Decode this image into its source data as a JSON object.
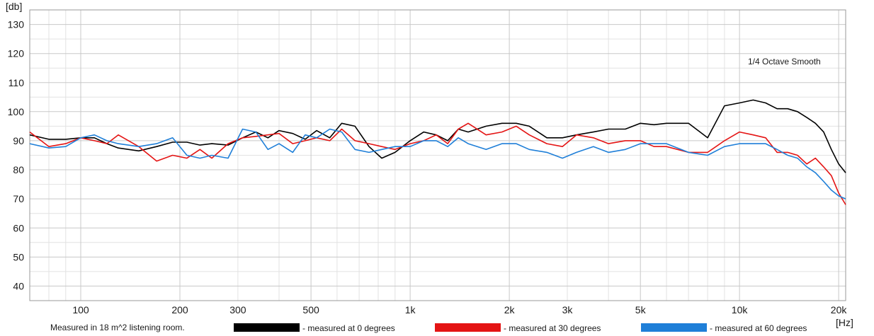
{
  "chart_data": {
    "type": "line",
    "title": "",
    "xlabel": "[Hz]",
    "ylabel": "[db]",
    "xscale": "log",
    "xlim": [
      70,
      21000
    ],
    "ylim": [
      35,
      135
    ],
    "grid": true,
    "annotation": "1/4 Octave Smooth",
    "footnote": "Measured in 18 m^2  listening room.",
    "x_ticks": [
      {
        "value": 100,
        "label": "100"
      },
      {
        "value": 200,
        "label": "200"
      },
      {
        "value": 300,
        "label": "300"
      },
      {
        "value": 500,
        "label": "500"
      },
      {
        "value": 1000,
        "label": "1k"
      },
      {
        "value": 2000,
        "label": "2k"
      },
      {
        "value": 3000,
        "label": "3k"
      },
      {
        "value": 5000,
        "label": "5k"
      },
      {
        "value": 10000,
        "label": "10k"
      },
      {
        "value": 20000,
        "label": "20k"
      }
    ],
    "y_ticks": [
      130,
      120,
      110,
      100,
      90,
      80,
      70,
      60,
      50,
      40
    ],
    "x": [
      70,
      80,
      90,
      100,
      110,
      120,
      130,
      150,
      170,
      190,
      210,
      230,
      250,
      280,
      310,
      340,
      370,
      400,
      440,
      480,
      520,
      570,
      620,
      680,
      750,
      820,
      900,
      1000,
      1100,
      1200,
      1300,
      1400,
      1500,
      1700,
      1900,
      2100,
      2300,
      2600,
      2900,
      3200,
      3600,
      4000,
      4500,
      5000,
      5500,
      6000,
      7000,
      8000,
      9000,
      10000,
      11000,
      12000,
      13000,
      14000,
      15000,
      16000,
      17000,
      18000,
      19000,
      20000,
      21000
    ],
    "series": [
      {
        "legend": "- measured at 0 degrees",
        "color": "#000000",
        "values": [
          92,
          90.5,
          90.5,
          91,
          91,
          89,
          87.5,
          86.5,
          88,
          89.5,
          89.5,
          88.5,
          89,
          88.5,
          91,
          93,
          91,
          93.5,
          92.5,
          90.5,
          93.5,
          91,
          96,
          95,
          88,
          84,
          86,
          90,
          93,
          92,
          90,
          94,
          93,
          95,
          96,
          96,
          95,
          91,
          91,
          92,
          93,
          94,
          94,
          96,
          95.5,
          96,
          96,
          91,
          102,
          103,
          104,
          103,
          101,
          101,
          100,
          98,
          96,
          93,
          87,
          82,
          79
        ]
      },
      {
        "legend": "- measured at 30 degrees",
        "color": "#e41414",
        "values": [
          93,
          88,
          89,
          91,
          90,
          89,
          92,
          88,
          83,
          85,
          84,
          87,
          84,
          89,
          91,
          91.5,
          92,
          92.5,
          89,
          90,
          91,
          90,
          94,
          90,
          89,
          88,
          87,
          89,
          90,
          92,
          89,
          94,
          96,
          92,
          93,
          95,
          92,
          89,
          88,
          92,
          91,
          89,
          90,
          90,
          88,
          88,
          86,
          86,
          90,
          93,
          92,
          91,
          86,
          86,
          85,
          82,
          84,
          81,
          78,
          72,
          68
        ]
      },
      {
        "legend": "- measured at 60 degrees",
        "color": "#1f7fd8",
        "values": [
          89,
          87.5,
          88,
          91,
          92,
          90,
          89,
          88,
          89,
          91,
          85,
          84,
          85,
          84,
          94,
          93,
          87,
          89,
          86,
          92,
          91,
          94,
          93,
          87,
          86,
          87,
          88,
          88,
          90,
          90,
          88,
          91,
          89,
          87,
          89,
          89,
          87,
          86,
          84,
          86,
          88,
          86,
          87,
          89,
          89,
          89,
          86,
          85,
          88,
          89,
          89,
          89,
          87,
          85,
          84,
          81,
          79,
          76,
          73,
          71,
          70
        ]
      }
    ]
  }
}
